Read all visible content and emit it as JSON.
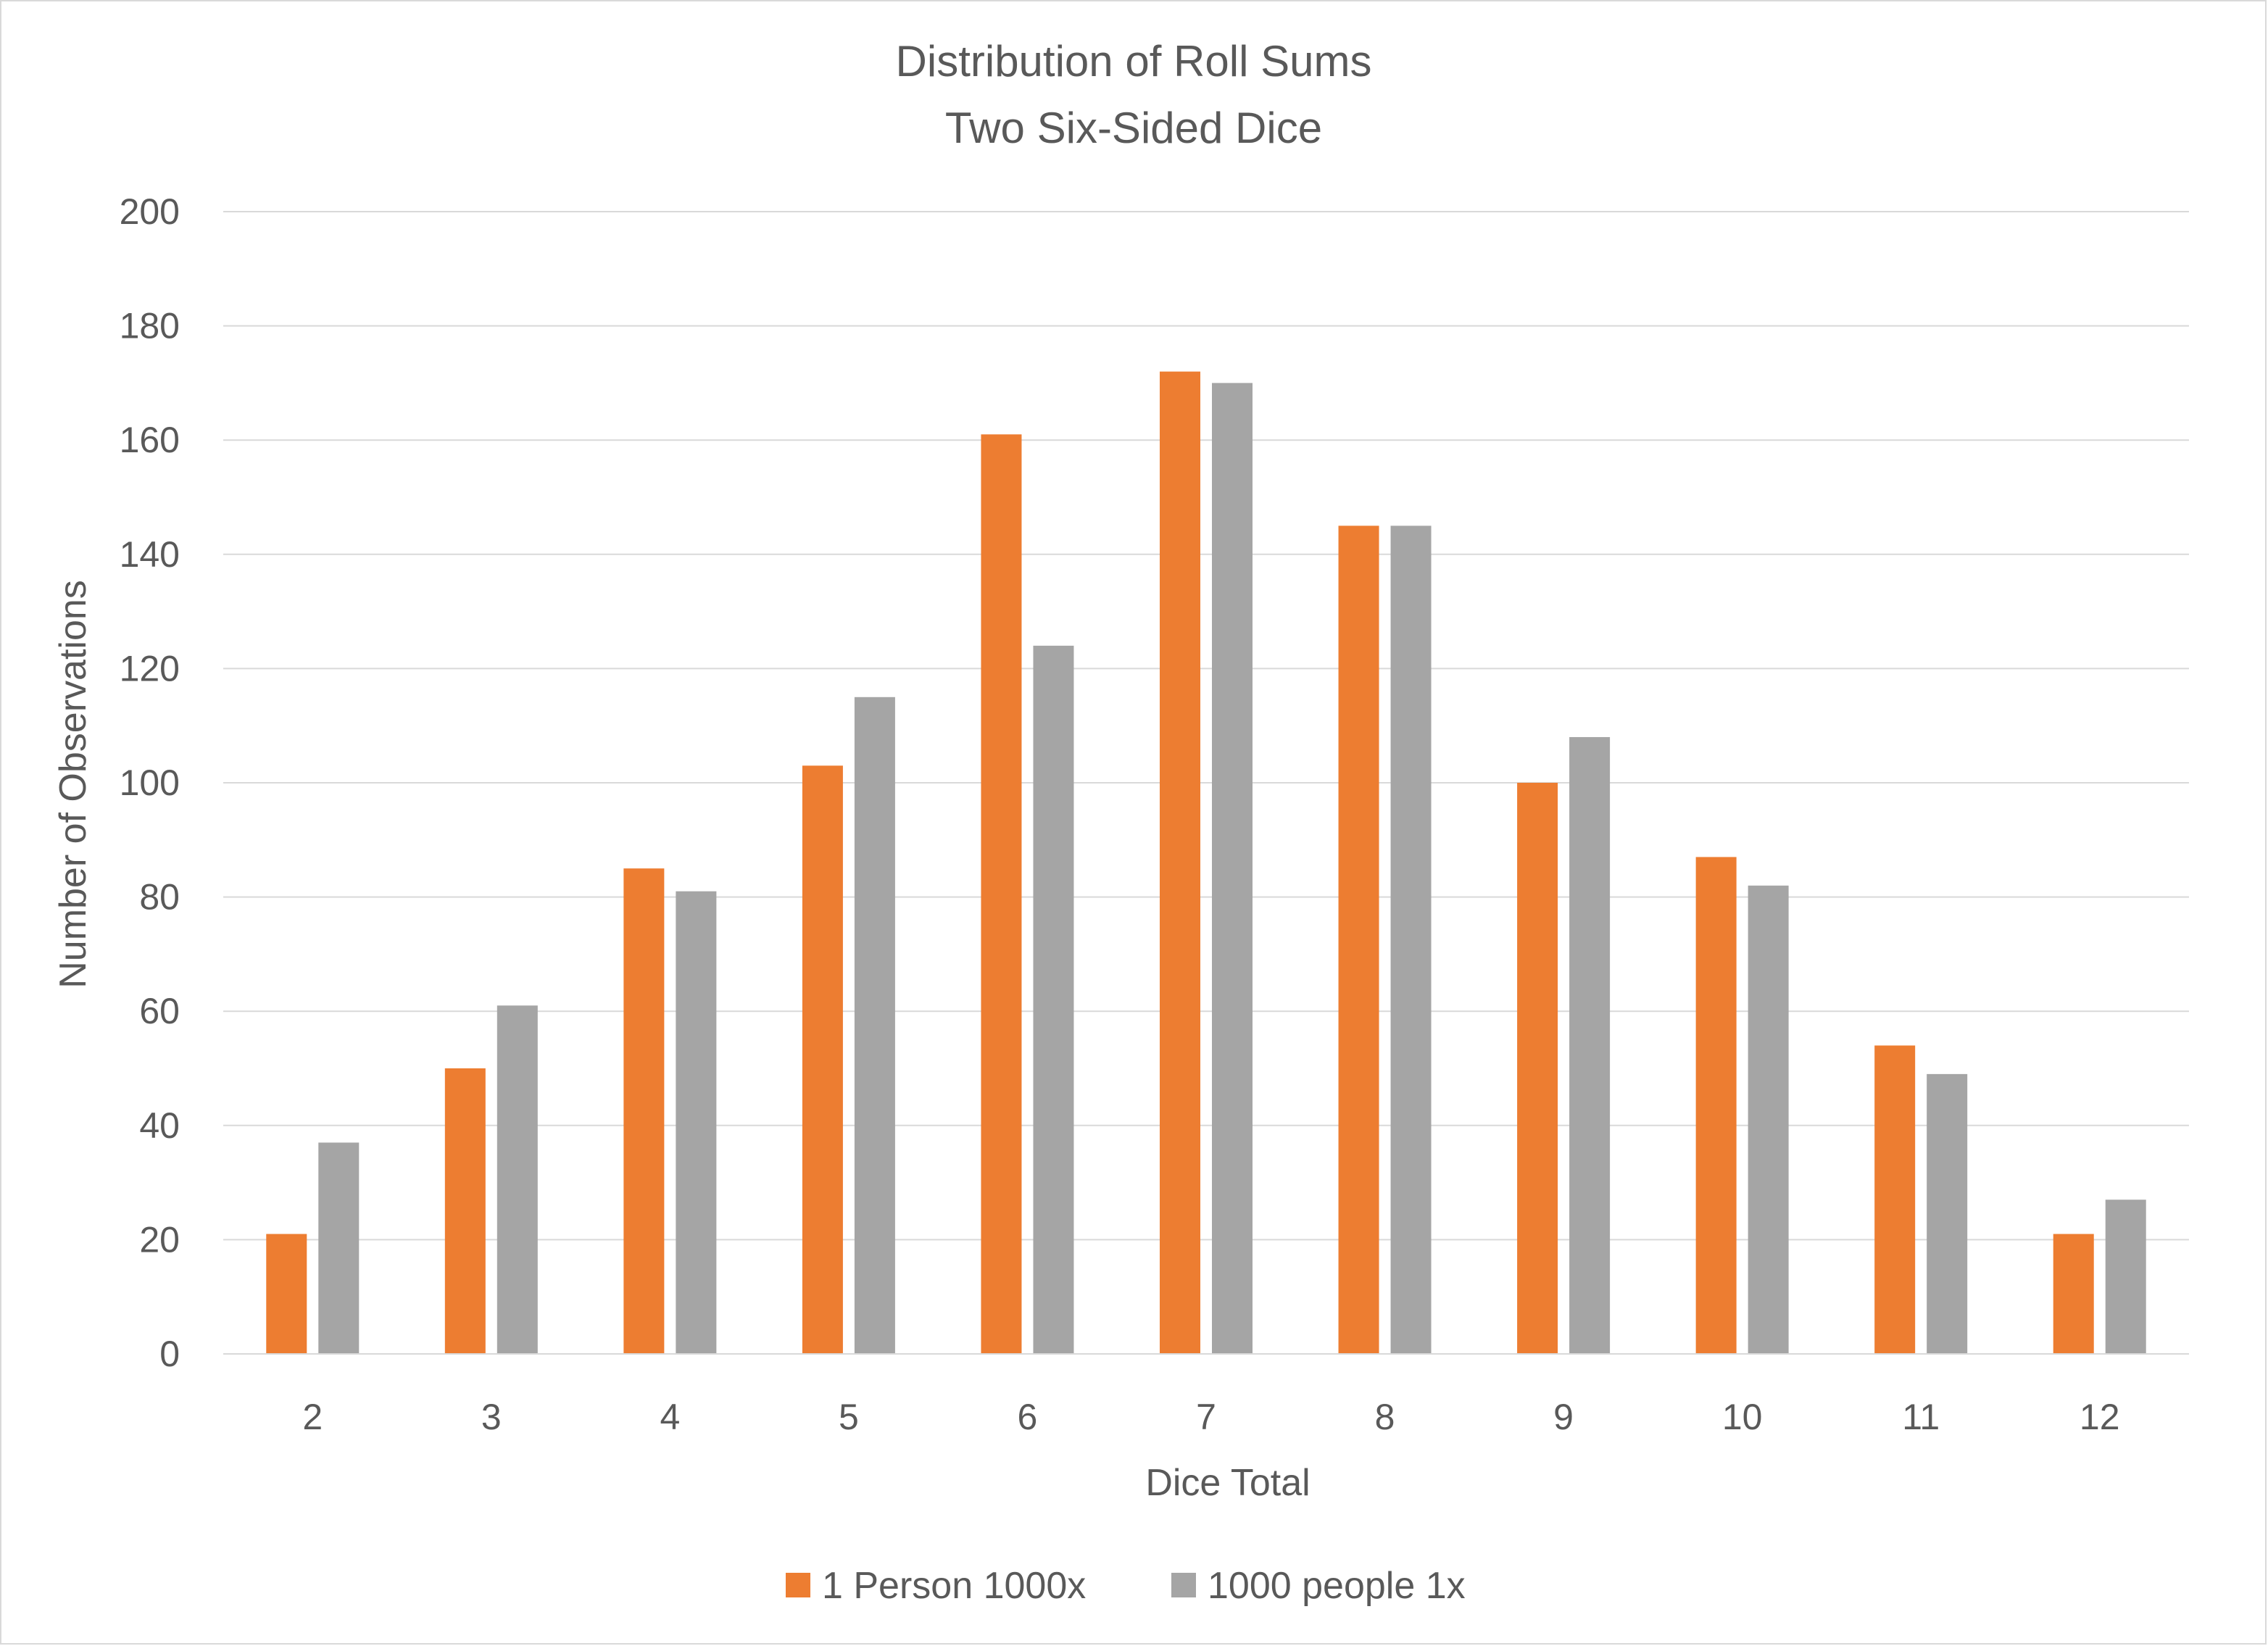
{
  "chart_data": {
    "type": "bar",
    "title": "Distribution of Roll Sums",
    "subtitle": "Two Six-Sided Dice",
    "xlabel": "Dice Total",
    "ylabel": "Number of Observations",
    "categories": [
      "2",
      "3",
      "4",
      "5",
      "6",
      "7",
      "8",
      "9",
      "10",
      "11",
      "12"
    ],
    "ylim": [
      0,
      200
    ],
    "yticks": [
      "0",
      "20",
      "40",
      "60",
      "80",
      "100",
      "120",
      "140",
      "160",
      "180",
      "200"
    ],
    "grid": true,
    "legend_position": "bottom",
    "series": [
      {
        "name": "1 Person 1000x",
        "color": "#ED7D31",
        "values": [
          21,
          50,
          85,
          103,
          161,
          172,
          145,
          100,
          87,
          54,
          21
        ]
      },
      {
        "name": "1000 people 1x",
        "color": "#A5A5A5",
        "values": [
          37,
          61,
          81,
          115,
          124,
          170,
          145,
          108,
          82,
          49,
          27
        ]
      }
    ]
  }
}
